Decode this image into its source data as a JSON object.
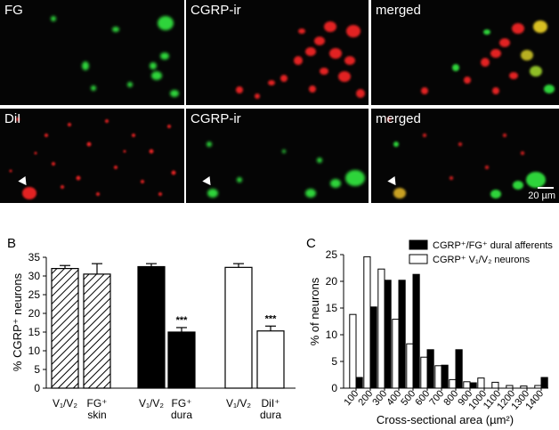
{
  "panel_a": {
    "row1": [
      "FG",
      "CGRP-ir",
      "merged"
    ],
    "row2": [
      "DiI",
      "CGRP-ir",
      "merged"
    ],
    "scale_label": "20 µm"
  },
  "chart_data": [
    {
      "panel": "B",
      "type": "bar",
      "ylabel": "% CGRP⁺ neurons",
      "ylim": [
        0,
        35
      ],
      "yticks": [
        0,
        5,
        10,
        15,
        20,
        25,
        30,
        35
      ],
      "categories": [
        "V₁/V₂",
        "FG⁺ skin",
        "V₁/V₂",
        "FG⁺ dura",
        "V₁/V₂",
        "DiI⁺ dura"
      ],
      "values": [
        32,
        30.5,
        32.5,
        15,
        32.3,
        15.3
      ],
      "errors": [
        0.8,
        2.8,
        0.8,
        1.2,
        1.0,
        1.3
      ],
      "fills": [
        "hatched",
        "hatched",
        "black",
        "black",
        "white",
        "white"
      ],
      "significance": [
        "",
        "",
        "",
        "***",
        "",
        "***"
      ]
    },
    {
      "panel": "C",
      "type": "bar",
      "xlabel": "Cross-sectional area (µm²)",
      "ylabel": "% of neurons",
      "ylim": [
        0,
        25
      ],
      "yticks": [
        0,
        5,
        10,
        15,
        20,
        25
      ],
      "categories": [
        "100",
        "200",
        "300",
        "400",
        "500",
        "600",
        "700",
        "800",
        "900",
        "1000",
        "1100",
        "1200",
        "1300",
        "1400"
      ],
      "series": [
        {
          "name": "CGRP⁺/FG⁺ dural afferents",
          "color": "#000000",
          "values": [
            2,
            15.2,
            20.2,
            20.2,
            21.3,
            7.2,
            4.3,
            7.2,
            1,
            0,
            0,
            0,
            0,
            2
          ]
        },
        {
          "name": "CGRP⁺ V₁/V₂ neurons",
          "color": "#ffffff",
          "values": [
            13.8,
            24.6,
            22.3,
            12.9,
            8.3,
            5.8,
            4.2,
            1.6,
            1.2,
            1.9,
            1.1,
            0.5,
            0.4,
            0.5
          ]
        }
      ]
    }
  ],
  "panel_labels": {
    "b": "B",
    "c": "C"
  }
}
